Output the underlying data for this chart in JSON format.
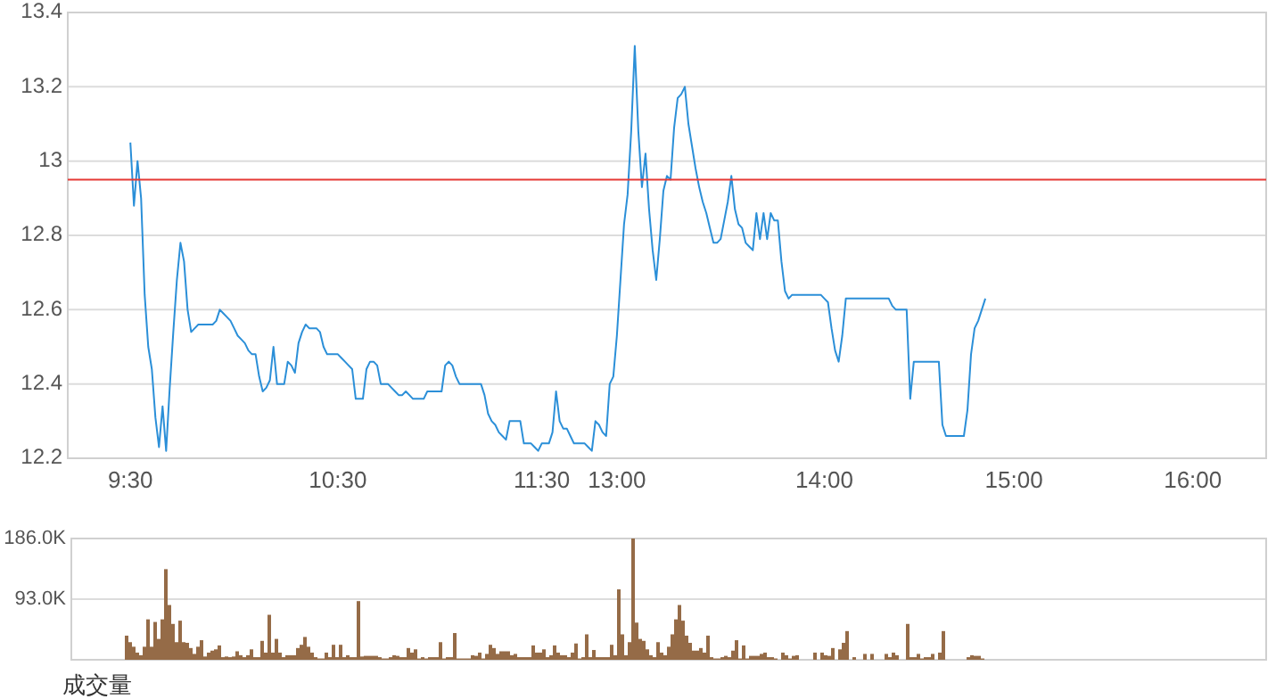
{
  "chart_data": [
    {
      "type": "line",
      "ylim": [
        12.2,
        13.4
      ],
      "yticks": [
        12.2,
        12.4,
        12.6,
        12.8,
        13,
        13.2,
        13.4
      ],
      "grid": "y",
      "categories": [
        null,
        null,
        null,
        null,
        null,
        null,
        null,
        null,
        null,
        null,
        null,
        null,
        null,
        null,
        null,
        null,
        null,
        "9:30",
        null,
        null,
        null,
        null,
        null,
        null,
        null,
        null,
        null,
        null,
        null,
        null,
        null,
        null,
        null,
        null,
        null,
        null,
        null,
        null,
        null,
        null,
        null,
        null,
        null,
        null,
        null,
        null,
        null,
        null,
        null,
        null,
        null,
        null,
        null,
        null,
        null,
        null,
        null,
        null,
        null,
        null,
        null,
        null,
        null,
        null,
        null,
        null,
        null,
        null,
        null,
        null,
        null,
        null,
        null,
        null,
        null,
        "10:30",
        null,
        null,
        null,
        null,
        null,
        null,
        null,
        null,
        null,
        null,
        null,
        null,
        null,
        null,
        null,
        null,
        null,
        null,
        null,
        null,
        null,
        null,
        null,
        null,
        null,
        null,
        null,
        null,
        null,
        null,
        null,
        null,
        null,
        null,
        null,
        null,
        null,
        null,
        null,
        null,
        null,
        null,
        null,
        null,
        null,
        null,
        null,
        null,
        null,
        null,
        null,
        null,
        null,
        null,
        null,
        null,
        "11:30",
        null,
        null,
        null,
        null,
        null,
        null,
        null,
        null,
        null,
        null,
        null,
        null,
        null,
        null,
        null,
        null,
        null,
        null,
        null,
        null,
        "13:00",
        null,
        null,
        null,
        null,
        null,
        null,
        null,
        null,
        null,
        null,
        null,
        null,
        null,
        null,
        null,
        null,
        null,
        null,
        null,
        null,
        null,
        null,
        null,
        null,
        null,
        null,
        null,
        null,
        null,
        null,
        null,
        null,
        null,
        null,
        null,
        null,
        null,
        null,
        null,
        null,
        null,
        null,
        null,
        null,
        null,
        null,
        null,
        null,
        null,
        null,
        null,
        null,
        null,
        null,
        null,
        null,
        null,
        "14:00",
        null,
        null,
        null,
        null,
        null,
        null,
        null,
        null,
        null,
        null,
        null,
        null,
        null,
        null,
        null,
        null,
        null,
        null,
        null,
        null,
        null,
        null,
        null,
        null,
        null,
        null,
        null,
        null,
        null,
        null,
        null,
        null,
        null,
        null,
        null,
        null,
        null,
        null,
        null,
        null,
        null,
        null,
        null,
        null,
        null,
        null,
        null,
        null,
        null,
        null,
        null,
        null,
        "15:00",
        null,
        null,
        null,
        null,
        null,
        null,
        null,
        null,
        null,
        null,
        null,
        null,
        null,
        null,
        null,
        null,
        null,
        null,
        null,
        null,
        null,
        null,
        null,
        null,
        null,
        null,
        null,
        null,
        null,
        null,
        null,
        null,
        null,
        null,
        null,
        null,
        null,
        null,
        null,
        null,
        null,
        null,
        null,
        null,
        null,
        null,
        null,
        null,
        null,
        "16:00",
        null,
        null,
        null,
        null,
        null,
        null,
        null,
        null,
        null,
        null,
        null,
        null,
        null,
        null,
        null,
        null,
        null,
        null,
        null,
        null
      ],
      "series": [
        {
          "color": "#2b8fd8",
          "values": [
            null,
            null,
            null,
            null,
            null,
            null,
            null,
            null,
            null,
            null,
            null,
            null,
            null,
            null,
            null,
            null,
            null,
            13.05,
            12.88,
            13.0,
            12.9,
            12.64,
            12.5,
            12.44,
            12.31,
            12.23,
            12.34,
            12.22,
            12.39,
            12.54,
            12.68,
            12.78,
            12.73,
            12.6,
            12.54,
            12.55,
            12.56,
            12.56,
            12.56,
            12.56,
            12.56,
            12.57,
            12.6,
            12.59,
            12.58,
            12.57,
            12.55,
            12.53,
            12.52,
            12.51,
            12.49,
            12.48,
            12.48,
            12.42,
            12.38,
            12.39,
            12.41,
            12.5,
            12.4,
            12.4,
            12.4,
            12.46,
            12.45,
            12.43,
            12.51,
            12.54,
            12.56,
            12.55,
            12.55,
            12.55,
            12.54,
            12.5,
            12.48,
            12.48,
            12.48,
            12.48,
            12.47,
            12.46,
            12.45,
            12.44,
            12.36,
            12.36,
            12.36,
            12.44,
            12.46,
            12.46,
            12.45,
            12.4,
            12.4,
            12.4,
            12.39,
            12.38,
            12.37,
            12.37,
            12.38,
            12.37,
            12.36,
            12.36,
            12.36,
            12.36,
            12.38,
            12.38,
            12.38,
            12.38,
            12.38,
            12.45,
            12.46,
            12.45,
            12.42,
            12.4,
            12.4,
            12.4,
            12.4,
            12.4,
            12.4,
            12.4,
            12.37,
            12.32,
            12.3,
            12.29,
            12.27,
            12.26,
            12.25,
            12.3,
            12.3,
            12.3,
            12.3,
            12.24,
            12.24,
            12.24,
            12.23,
            12.22,
            12.24,
            12.24,
            12.24,
            12.27,
            12.38,
            12.3,
            12.28,
            12.28,
            12.26,
            12.24,
            12.24,
            12.24,
            12.24,
            12.23,
            12.22,
            12.3,
            12.29,
            12.27,
            12.26,
            12.4,
            12.42,
            12.53,
            12.68,
            12.83,
            12.91,
            13.08,
            13.31,
            13.08,
            12.93,
            13.02,
            12.87,
            12.76,
            12.68,
            12.79,
            12.92,
            12.96,
            12.95,
            13.09,
            13.17,
            13.18,
            13.2,
            13.1,
            13.04,
            12.98,
            12.93,
            12.89,
            12.86,
            12.82,
            12.78,
            12.78,
            12.79,
            12.84,
            12.89,
            12.96,
            12.87,
            12.83,
            12.82,
            12.78,
            12.77,
            12.76,
            12.86,
            12.79,
            12.86,
            12.79,
            12.86,
            12.84,
            12.84,
            12.73,
            12.65,
            12.63,
            12.64,
            12.64,
            12.64,
            12.64,
            12.64,
            12.64,
            12.64,
            12.64,
            12.64,
            12.63,
            12.62,
            12.55,
            12.49,
            12.46,
            12.53,
            12.63,
            12.63,
            12.63,
            12.63,
            12.63,
            12.63,
            12.63,
            12.63,
            12.63,
            12.63,
            12.63,
            12.63,
            12.63,
            12.61,
            12.6,
            12.6,
            12.6,
            12.6,
            12.36,
            12.46,
            12.46,
            12.46,
            12.46,
            12.46,
            12.46,
            12.46,
            12.46,
            12.29,
            12.26,
            12.26,
            12.26,
            12.26,
            12.26,
            12.26,
            12.33,
            12.48,
            12.55,
            12.57,
            12.6,
            12.63,
            null,
            null,
            null,
            null,
            null,
            null,
            null,
            null,
            null,
            null,
            null,
            null,
            null,
            null,
            null,
            null,
            null,
            null,
            null,
            null,
            null,
            null,
            null,
            null,
            null,
            null,
            null,
            null,
            null,
            null,
            null,
            null,
            null,
            null,
            null,
            null,
            null,
            null,
            null,
            null,
            null,
            null,
            null,
            null,
            null,
            null,
            null,
            null,
            null,
            null,
            null,
            null,
            null,
            null,
            null,
            null,
            null,
            null,
            null,
            null,
            null,
            null,
            null,
            null,
            null,
            null,
            null,
            null,
            null,
            null,
            null,
            null,
            null,
            null,
            null,
            null,
            null,
            null
          ]
        }
      ],
      "ref_lines": [
        {
          "axis": "y",
          "value": 12.95,
          "color": "#e53935"
        }
      ]
    },
    {
      "type": "bar",
      "title": "成交量",
      "tick_labels": "y",
      "ylim": [
        0,
        186
      ],
      "yticks": [
        {
          "value": 93,
          "label": "93.0K"
        },
        {
          "value": 186,
          "label": "186.0K"
        }
      ],
      "grid": "y",
      "color": "#956b47",
      "categories": [
        null,
        null,
        null,
        null,
        null,
        null,
        null,
        null,
        null,
        null,
        null,
        null,
        null,
        null,
        null,
        null,
        null,
        null,
        null,
        null,
        null,
        null,
        null,
        null,
        null,
        null,
        null,
        null,
        null,
        null,
        null,
        null,
        null,
        null,
        null,
        null,
        null,
        null,
        null,
        null,
        null,
        null,
        null,
        null,
        null,
        null,
        null,
        null,
        null,
        null,
        null,
        null,
        null,
        null,
        null,
        null,
        null,
        null,
        null,
        null,
        null,
        null,
        null,
        null,
        null,
        null,
        null,
        null,
        null,
        null,
        null,
        null,
        null,
        null,
        null,
        null,
        null,
        null,
        null,
        null,
        null,
        null,
        null,
        null,
        null,
        null,
        null,
        null,
        null,
        null,
        null,
        null,
        null,
        null,
        null,
        null,
        null,
        null,
        null,
        null,
        null,
        null,
        null,
        null,
        null,
        null,
        null,
        null,
        null,
        null,
        null,
        null,
        null,
        null,
        null,
        null,
        null,
        null,
        null,
        null,
        null,
        null,
        null,
        null,
        null,
        null,
        null,
        null,
        null,
        null,
        null,
        null,
        null,
        null,
        null,
        null,
        null,
        null,
        null,
        null,
        null,
        null,
        null,
        null,
        null,
        null,
        null,
        null,
        null,
        null,
        null,
        null,
        null,
        null,
        null,
        null,
        null,
        null,
        null,
        null,
        null,
        null,
        null,
        null,
        null,
        null,
        null,
        null,
        null,
        null,
        null,
        null,
        null,
        null,
        null,
        null,
        null,
        null,
        null,
        null,
        null,
        null,
        null,
        null,
        null,
        null,
        null,
        null,
        null,
        null,
        null,
        null,
        null,
        null,
        null,
        null,
        null,
        null,
        null,
        null,
        null,
        null,
        null,
        null,
        null,
        null,
        null,
        null,
        null,
        null,
        null,
        null,
        null,
        null,
        null,
        null,
        null,
        null,
        null,
        null,
        null,
        null,
        null,
        null,
        null,
        null,
        null,
        null,
        null,
        null,
        null,
        null,
        null,
        null,
        null,
        null,
        null,
        null,
        null,
        null,
        null,
        null,
        null,
        null,
        null,
        null,
        null,
        null,
        null,
        null,
        null,
        null,
        null,
        null,
        null,
        null,
        null,
        null,
        null,
        null,
        null,
        null,
        null,
        null,
        null,
        null,
        null,
        null,
        null,
        null,
        null,
        null,
        null,
        null,
        null,
        null,
        null,
        null,
        null,
        null,
        null,
        null,
        null,
        null,
        null,
        null,
        null,
        null,
        null,
        null,
        null,
        null,
        null,
        null,
        null,
        null,
        null,
        null,
        null,
        null,
        null,
        null,
        null,
        null,
        null,
        null,
        null,
        null,
        null,
        null,
        null,
        null,
        null,
        null,
        null,
        null,
        null,
        null,
        null,
        null,
        null,
        null,
        null,
        null,
        null,
        null,
        null,
        null,
        null,
        null,
        null,
        null,
        null,
        null,
        null
      ],
      "values": [
        null,
        null,
        null,
        null,
        null,
        null,
        null,
        null,
        null,
        null,
        null,
        null,
        null,
        null,
        null,
        37,
        27,
        20,
        11,
        7,
        20,
        62,
        20,
        58,
        32,
        62,
        139,
        84,
        55,
        27,
        60,
        27,
        26,
        18,
        9,
        20,
        30,
        5,
        11,
        14,
        16,
        22,
        4,
        5,
        4,
        5,
        13,
        7,
        4,
        7,
        16,
        4,
        4,
        29,
        11,
        69,
        11,
        32,
        11,
        4,
        7,
        7,
        7,
        18,
        23,
        35,
        20,
        11,
        4,
        2,
        2,
        11,
        4,
        23,
        4,
        23,
        4,
        7,
        4,
        4,
        90,
        5,
        6,
        6,
        6,
        6,
        4,
        2,
        2,
        4,
        7,
        6,
        4,
        4,
        18,
        11,
        16,
        2,
        4,
        2,
        4,
        4,
        4,
        27,
        2,
        4,
        4,
        41,
        2,
        2,
        2,
        2,
        7,
        6,
        11,
        2,
        9,
        23,
        18,
        9,
        13,
        13,
        13,
        7,
        9,
        4,
        4,
        4,
        4,
        22,
        11,
        11,
        16,
        4,
        7,
        22,
        11,
        7,
        7,
        4,
        11,
        25,
        2,
        4,
        39,
        4,
        15,
        4,
        4,
        4,
        4,
        23,
        7,
        108,
        39,
        7,
        27,
        186,
        57,
        32,
        29,
        16,
        7,
        4,
        27,
        11,
        7,
        20,
        39,
        62,
        84,
        60,
        37,
        26,
        14,
        14,
        18,
        11,
        37,
        4,
        2,
        2,
        4,
        6,
        4,
        14,
        30,
        2,
        22,
        2,
        6,
        6,
        6,
        9,
        11,
        4,
        4,
        2,
        0,
        11,
        7,
        2,
        6,
        7,
        0,
        0,
        0,
        0,
        11,
        0,
        11,
        7,
        6,
        18,
        0,
        16,
        26,
        44,
        0,
        4,
        0,
        0,
        9,
        0,
        9,
        0,
        0,
        0,
        9,
        4,
        11,
        7,
        0,
        0,
        55,
        4,
        4,
        9,
        2,
        4,
        4,
        9,
        0,
        11,
        44,
        0,
        0,
        0,
        0,
        0,
        0,
        4,
        7,
        6,
        6,
        2,
        null,
        null,
        null,
        null,
        null,
        null,
        null,
        null,
        null,
        null,
        null,
        null,
        null,
        null,
        null,
        null,
        null,
        null,
        null,
        null,
        null,
        null,
        null,
        null,
        null,
        null,
        null,
        null,
        null,
        null,
        null,
        null,
        null,
        null,
        null,
        null,
        null,
        null,
        null,
        null,
        null,
        null,
        null,
        null,
        null,
        null,
        null,
        null,
        null,
        null,
        null,
        null,
        null,
        null,
        null,
        null,
        null,
        null,
        null,
        null,
        null,
        null,
        null,
        null,
        null,
        null,
        null,
        null,
        null,
        null,
        null,
        null,
        null,
        null,
        null,
        null,
        null,
        null,
        null
      ]
    }
  ]
}
